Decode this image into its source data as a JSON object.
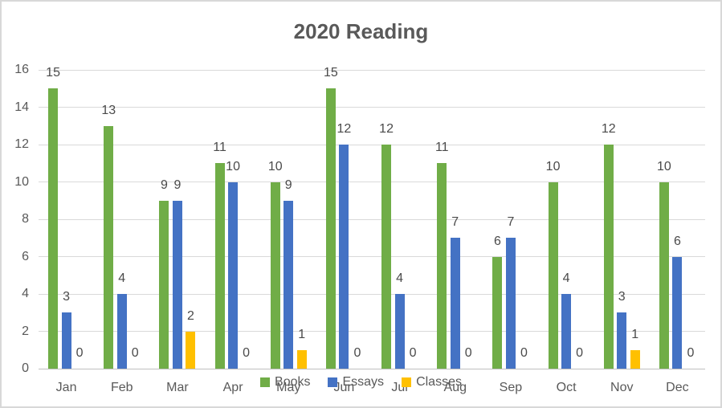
{
  "chart_data": {
    "type": "bar",
    "title": "2020 Reading",
    "categories": [
      "Jan",
      "Feb",
      "Mar",
      "Apr",
      "May",
      "Jun",
      "Jul",
      "Aug",
      "Sep",
      "Oct",
      "Nov",
      "Dec"
    ],
    "series": [
      {
        "name": "Books",
        "color": "#70AD47",
        "values": [
          15,
          13,
          9,
          11,
          10,
          15,
          12,
          11,
          6,
          10,
          12,
          10
        ]
      },
      {
        "name": "Essays",
        "color": "#4472C4",
        "values": [
          3,
          4,
          9,
          10,
          9,
          12,
          4,
          7,
          7,
          4,
          3,
          6
        ]
      },
      {
        "name": "Classes",
        "color": "#FFC000",
        "values": [
          0,
          0,
          2,
          0,
          1,
          0,
          0,
          0,
          0,
          0,
          1,
          0
        ]
      }
    ],
    "xlabel": "",
    "ylabel": "",
    "ylim": [
      0,
      16
    ],
    "y_ticks": [
      0,
      2,
      4,
      6,
      8,
      10,
      12,
      14,
      16
    ],
    "grid": true,
    "data_labels": true,
    "legend_position": "bottom-inside",
    "colors": {
      "gridline": "#D9D9D9",
      "axis_line": "#BFBFBF",
      "axis_text": "#595959",
      "label_text": "#4A4A4A",
      "title_text": "#595959",
      "background": "#FFFFFF",
      "border": "#D8D8D8"
    }
  }
}
